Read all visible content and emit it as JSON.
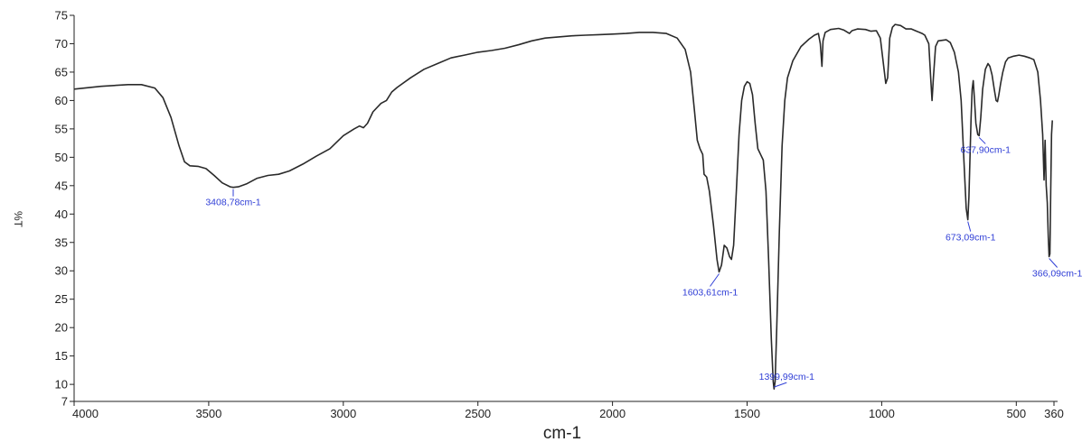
{
  "chart_data": {
    "type": "line",
    "title": "",
    "xlabel": "cm-1",
    "ylabel": "%T",
    "xlim": [
      4000,
      360
    ],
    "ylim": [
      7,
      75
    ],
    "x_reversed": true,
    "x_ticks": [
      {
        "value": 4000,
        "label": "4000"
      },
      {
        "value": 3500,
        "label": "3500"
      },
      {
        "value": 3000,
        "label": "3000"
      },
      {
        "value": 2500,
        "label": "2500"
      },
      {
        "value": 2000,
        "label": "2000"
      },
      {
        "value": 1500,
        "label": "1500"
      },
      {
        "value": 1000,
        "label": "1000"
      },
      {
        "value": 500,
        "label": "500"
      },
      {
        "value": 360,
        "label": "360"
      }
    ],
    "y_ticks": [
      {
        "value": 7,
        "label": "7"
      },
      {
        "value": 10,
        "label": "10"
      },
      {
        "value": 15,
        "label": "15"
      },
      {
        "value": 20,
        "label": "20"
      },
      {
        "value": 25,
        "label": "25"
      },
      {
        "value": 30,
        "label": "30"
      },
      {
        "value": 35,
        "label": "35"
      },
      {
        "value": 40,
        "label": "40"
      },
      {
        "value": 45,
        "label": "45"
      },
      {
        "value": 50,
        "label": "50"
      },
      {
        "value": 55,
        "label": "55"
      },
      {
        "value": 60,
        "label": "60"
      },
      {
        "value": 65,
        "label": "65"
      },
      {
        "value": 70,
        "label": "70"
      },
      {
        "value": 75,
        "label": "75"
      }
    ],
    "grid": false,
    "series": [
      {
        "points": [
          [
            4000,
            62.0
          ],
          [
            3900,
            62.5
          ],
          [
            3800,
            62.8
          ],
          [
            3750,
            62.8
          ],
          [
            3700,
            62.2
          ],
          [
            3670,
            60.5
          ],
          [
            3640,
            57.0
          ],
          [
            3610,
            52.0
          ],
          [
            3590,
            49.2
          ],
          [
            3570,
            48.5
          ],
          [
            3540,
            48.4
          ],
          [
            3510,
            48.0
          ],
          [
            3480,
            46.8
          ],
          [
            3450,
            45.5
          ],
          [
            3420,
            44.8
          ],
          [
            3409,
            44.7
          ],
          [
            3390,
            44.8
          ],
          [
            3360,
            45.3
          ],
          [
            3320,
            46.3
          ],
          [
            3280,
            46.8
          ],
          [
            3240,
            47.0
          ],
          [
            3200,
            47.6
          ],
          [
            3150,
            48.8
          ],
          [
            3100,
            50.2
          ],
          [
            3050,
            51.5
          ],
          [
            3000,
            53.8
          ],
          [
            2960,
            55.0
          ],
          [
            2940,
            55.5
          ],
          [
            2925,
            55.2
          ],
          [
            2910,
            56.0
          ],
          [
            2890,
            58.0
          ],
          [
            2860,
            59.5
          ],
          [
            2840,
            60.0
          ],
          [
            2820,
            61.5
          ],
          [
            2800,
            62.3
          ],
          [
            2750,
            64.0
          ],
          [
            2700,
            65.5
          ],
          [
            2650,
            66.5
          ],
          [
            2600,
            67.5
          ],
          [
            2550,
            68.0
          ],
          [
            2500,
            68.5
          ],
          [
            2450,
            68.8
          ],
          [
            2400,
            69.2
          ],
          [
            2350,
            69.8
          ],
          [
            2300,
            70.5
          ],
          [
            2250,
            71.0
          ],
          [
            2200,
            71.2
          ],
          [
            2150,
            71.4
          ],
          [
            2100,
            71.5
          ],
          [
            2050,
            71.6
          ],
          [
            2000,
            71.7
          ],
          [
            1950,
            71.8
          ],
          [
            1900,
            72.0
          ],
          [
            1850,
            72.0
          ],
          [
            1800,
            71.8
          ],
          [
            1760,
            71.0
          ],
          [
            1730,
            69.0
          ],
          [
            1710,
            65.0
          ],
          [
            1695,
            58.0
          ],
          [
            1685,
            53.0
          ],
          [
            1675,
            51.5
          ],
          [
            1665,
            50.5
          ],
          [
            1660,
            47.0
          ],
          [
            1650,
            46.5
          ],
          [
            1640,
            44.0
          ],
          [
            1625,
            38.0
          ],
          [
            1612,
            32.0
          ],
          [
            1604,
            29.8
          ],
          [
            1595,
            31.0
          ],
          [
            1585,
            34.5
          ],
          [
            1575,
            34.0
          ],
          [
            1565,
            32.5
          ],
          [
            1558,
            32.0
          ],
          [
            1550,
            34.5
          ],
          [
            1540,
            44.0
          ],
          [
            1530,
            54.0
          ],
          [
            1520,
            60.0
          ],
          [
            1510,
            62.5
          ],
          [
            1500,
            63.3
          ],
          [
            1490,
            63.0
          ],
          [
            1480,
            61.0
          ],
          [
            1470,
            56.0
          ],
          [
            1460,
            51.5
          ],
          [
            1450,
            50.5
          ],
          [
            1440,
            49.5
          ],
          [
            1430,
            44.0
          ],
          [
            1420,
            32.0
          ],
          [
            1410,
            18.0
          ],
          [
            1403,
            10.5
          ],
          [
            1400,
            9.2
          ],
          [
            1396,
            10.5
          ],
          [
            1390,
            20.0
          ],
          [
            1380,
            37.0
          ],
          [
            1370,
            52.0
          ],
          [
            1360,
            60.0
          ],
          [
            1350,
            64.0
          ],
          [
            1330,
            67.0
          ],
          [
            1300,
            69.5
          ],
          [
            1270,
            70.8
          ],
          [
            1250,
            71.5
          ],
          [
            1235,
            71.8
          ],
          [
            1228,
            70.0
          ],
          [
            1222,
            66.0
          ],
          [
            1218,
            70.5
          ],
          [
            1210,
            72.0
          ],
          [
            1190,
            72.5
          ],
          [
            1160,
            72.7
          ],
          [
            1140,
            72.4
          ],
          [
            1120,
            71.8
          ],
          [
            1110,
            72.3
          ],
          [
            1090,
            72.6
          ],
          [
            1060,
            72.5
          ],
          [
            1040,
            72.2
          ],
          [
            1020,
            72.3
          ],
          [
            1005,
            71.0
          ],
          [
            995,
            67.0
          ],
          [
            985,
            63.0
          ],
          [
            978,
            64.0
          ],
          [
            970,
            71.0
          ],
          [
            960,
            72.9
          ],
          [
            950,
            73.4
          ],
          [
            930,
            73.2
          ],
          [
            910,
            72.6
          ],
          [
            890,
            72.6
          ],
          [
            870,
            72.2
          ],
          [
            850,
            71.8
          ],
          [
            840,
            71.5
          ],
          [
            825,
            70.0
          ],
          [
            818,
            64.0
          ],
          [
            813,
            60.0
          ],
          [
            808,
            64.0
          ],
          [
            800,
            69.5
          ],
          [
            790,
            70.5
          ],
          [
            760,
            70.7
          ],
          [
            745,
            70.2
          ],
          [
            730,
            68.5
          ],
          [
            715,
            65.0
          ],
          [
            705,
            60.0
          ],
          [
            695,
            50.0
          ],
          [
            686,
            41.0
          ],
          [
            680,
            39.0
          ],
          [
            676,
            43.0
          ],
          [
            672,
            50.0
          ],
          [
            668,
            57.0
          ],
          [
            664,
            62.0
          ],
          [
            660,
            63.5
          ],
          [
            655,
            60.0
          ],
          [
            650,
            56.0
          ],
          [
            643,
            54.0
          ],
          [
            638,
            53.8
          ],
          [
            632,
            57.0
          ],
          [
            625,
            62.0
          ],
          [
            615,
            65.5
          ],
          [
            605,
            66.5
          ],
          [
            598,
            66.0
          ],
          [
            590,
            64.5
          ],
          [
            582,
            62.0
          ],
          [
            575,
            60.0
          ],
          [
            570,
            59.8
          ],
          [
            565,
            61.0
          ],
          [
            558,
            63.0
          ],
          [
            550,
            65.0
          ],
          [
            540,
            66.8
          ],
          [
            530,
            67.5
          ],
          [
            510,
            67.8
          ],
          [
            490,
            68.0
          ],
          [
            470,
            67.8
          ],
          [
            450,
            67.5
          ],
          [
            435,
            67.2
          ],
          [
            420,
            65.0
          ],
          [
            410,
            60.0
          ],
          [
            402,
            54.0
          ],
          [
            397,
            46.0
          ],
          [
            393,
            53.0
          ],
          [
            389,
            45.0
          ],
          [
            385,
            42.0
          ],
          [
            381,
            36.0
          ],
          [
            378,
            32.5
          ],
          [
            375,
            33.0
          ],
          [
            372,
            44.0
          ],
          [
            369,
            54.0
          ],
          [
            366,
            56.5
          ]
        ]
      }
    ],
    "annotations": [
      {
        "label": "3408,78cm-1",
        "x": 3409,
        "y": 44.7
      },
      {
        "label": "1603,61cm-1",
        "x": 1604,
        "y": 29.8
      },
      {
        "label": "1399,99cm-1",
        "x": 1400,
        "y": 9.2
      },
      {
        "label": "673,09cm-1",
        "x": 680,
        "y": 39.0
      },
      {
        "label": "637,90cm-1",
        "x": 638,
        "y": 53.8
      },
      {
        "label": "366,09cm-1",
        "x": 378,
        "y": 32.5
      }
    ],
    "colors": {
      "line": "#2a2a2a",
      "annotation": "#2f3ed6",
      "axis": "#222222"
    }
  }
}
